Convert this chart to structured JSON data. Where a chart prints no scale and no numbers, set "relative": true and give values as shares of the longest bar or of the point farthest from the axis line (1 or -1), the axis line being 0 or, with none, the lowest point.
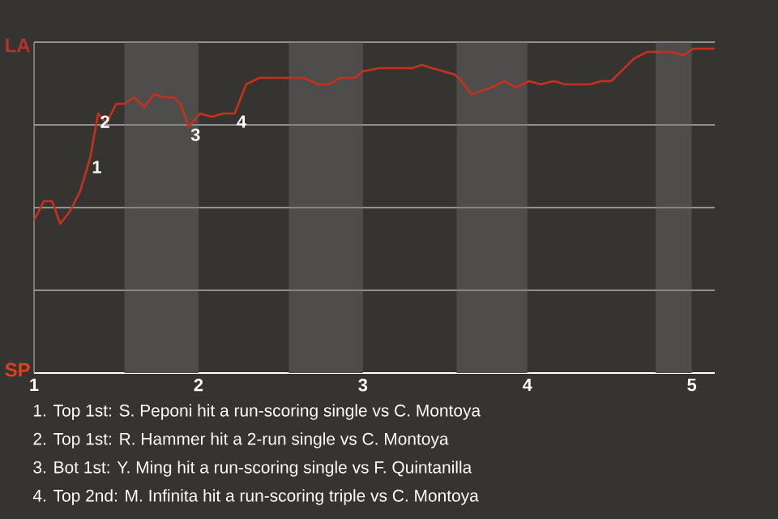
{
  "chart_data": {
    "type": "line",
    "relative": true,
    "xlim": [
      1,
      5.14
    ],
    "xticks": [
      1,
      2,
      3,
      4,
      5
    ],
    "grid": "y",
    "bands": [
      {
        "axis": "x",
        "from": 1.55,
        "to": 2,
        "color": "#4f4d4b"
      },
      {
        "axis": "x",
        "from": 2.55,
        "to": 3,
        "color": "#4f4d4b"
      },
      {
        "axis": "x",
        "from": 3.57,
        "to": 4,
        "color": "#4f4d4b"
      },
      {
        "axis": "x",
        "from": 4.78,
        "to": 5,
        "color": "#4f4d4b"
      }
    ],
    "series": [
      {
        "color": "#c8301e",
        "x": [
          1,
          1.06,
          1.11,
          1.16,
          1.22,
          1.28,
          1.34,
          1.39,
          1.44,
          1.5,
          1.55,
          1.61,
          1.67,
          1.73,
          1.79,
          1.85,
          1.89,
          1.94,
          2.01,
          2.08,
          2.15,
          2.22,
          2.29,
          2.37,
          2.44,
          2.56,
          2.64,
          2.73,
          2.8,
          2.86,
          2.95,
          3,
          3.1,
          3.3,
          3.36,
          3.42,
          3.56,
          3.6,
          3.66,
          3.78,
          3.86,
          3.93,
          4.01,
          4.08,
          4.16,
          4.23,
          4.38,
          4.45,
          4.51,
          4.59,
          4.65,
          4.73,
          4.84,
          4.88,
          4.95,
          5.01,
          5.14
        ],
        "values": [
          0.47,
          0.53,
          0.53,
          0.46,
          0.5,
          0.56,
          0.66,
          0.8,
          0.77,
          0.83,
          0.83,
          0.85,
          0.82,
          0.86,
          0.85,
          0.85,
          0.83,
          0.76,
          0.8,
          0.79,
          0.8,
          0.8,
          0.89,
          0.91,
          0.91,
          0.91,
          0.91,
          0.89,
          0.89,
          0.91,
          0.91,
          0.93,
          0.94,
          0.94,
          0.95,
          0.94,
          0.92,
          0.9,
          0.86,
          0.88,
          0.9,
          0.88,
          0.9,
          0.89,
          0.9,
          0.89,
          0.89,
          0.9,
          0.9,
          0.94,
          0.97,
          0.99,
          0.99,
          0.99,
          0.98,
          1,
          1
        ]
      }
    ],
    "annotations": [
      "LA",
      "SP",
      {
        "text": "1",
        "x": 1.34,
        "y": 0.66
      },
      {
        "text": "2",
        "x": 1.39,
        "y": 0.8
      },
      {
        "text": "3",
        "x": 1.94,
        "y": 0.76
      },
      {
        "text": "4",
        "x": 2.22,
        "y": 0.8
      },
      "1. Top 1st: S. Peponi hit a run-scoring single vs C. Montoya",
      "2. Top 1st: R. Hammer hit a 2-run single vs C. Montoya",
      "3. Bot 1st: Y. Ming hit a run-scoring single vs F. Quintanilla",
      "4. Top 2nd: M. Infinita hit a run-scoring triple vs C. Montoya"
    ]
  }
}
